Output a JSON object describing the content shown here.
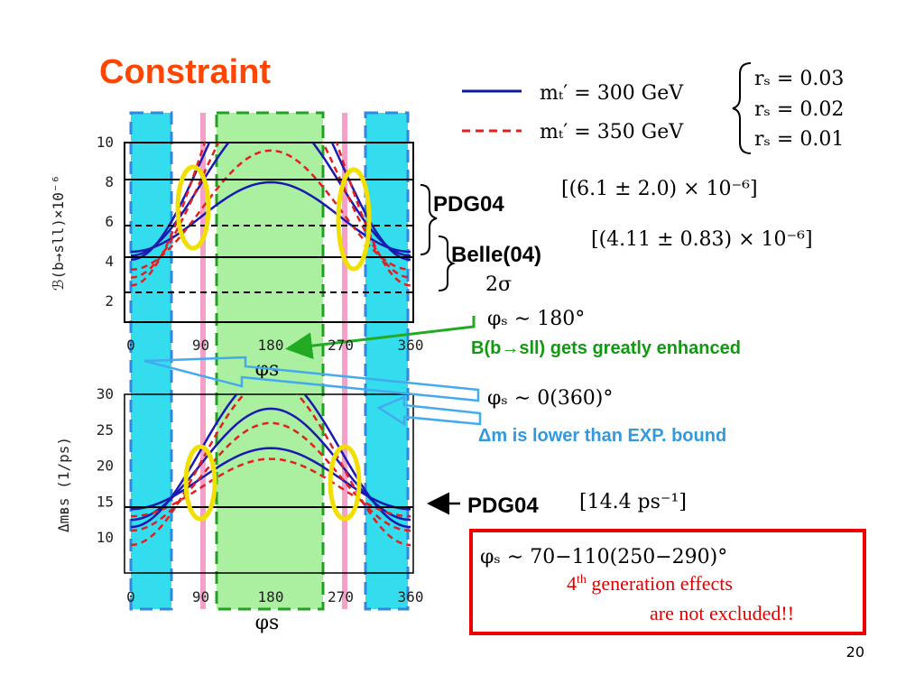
{
  "title": "Constraint",
  "legend": {
    "lines": [
      "mₜ′ = 300 GeV",
      "mₜ′ = 350 GeV"
    ],
    "rs": [
      "rₛ = 0.03",
      "rₛ = 0.02",
      "rₛ = 0.01"
    ]
  },
  "top_plot": {
    "ylabel": "ℬ(b→sll)×10⁻⁶",
    "yticks": [
      "10",
      "8",
      "6",
      "4",
      "2"
    ],
    "xticks": [
      "0",
      "90",
      "180",
      "270",
      "360"
    ],
    "xlabel": "φs"
  },
  "bottom_plot": {
    "ylabel": "Δmʙs (1/ps)",
    "yticks": [
      "30",
      "25",
      "20",
      "15",
      "10"
    ],
    "xticks": [
      "0",
      "90",
      "180",
      "270",
      "360"
    ],
    "xlabel": "φs"
  },
  "annotations": {
    "pdg04_top": "PDG04",
    "pdg04_top_value": "[(6.1 ± 2.0) × 10⁻⁶]",
    "belle": "Belle(04)",
    "belle_value": "[(4.11 ± 0.83) × 10⁻⁶]",
    "two_sigma": "2σ",
    "phi_180": "φₛ ∼ 180°",
    "enhanced": "B(b→sll)  gets greatly enhanced",
    "phi_0": "φₛ ∼ 0(360)°",
    "lower": "Δm is lower than EXP. bound",
    "pdg04_bottom": "PDG04",
    "pdg04_bottom_value": "[14.4 ps⁻¹]",
    "phi_range": "φₛ ∼ 70−110(250−290)°",
    "gen_number": "4",
    "gen_sup": "th",
    "gen_text": " generation effects",
    "not_excluded": "are not excluded!!"
  },
  "page_number": "20"
}
